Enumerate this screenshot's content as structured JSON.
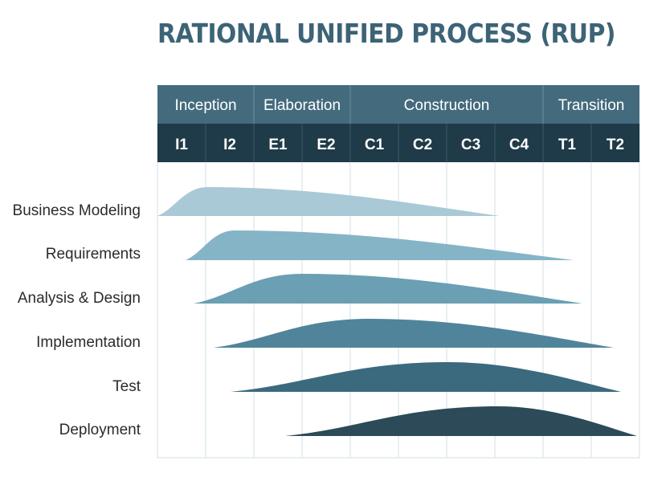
{
  "title": "RATIONAL UNIFIED PROCESS (RUP)",
  "phases": [
    {
      "label": "Inception",
      "span": 2
    },
    {
      "label": "Elaboration",
      "span": 2
    },
    {
      "label": "Construction",
      "span": 4
    },
    {
      "label": "Transition",
      "span": 2
    }
  ],
  "iterations": [
    "I1",
    "I2",
    "E1",
    "E2",
    "C1",
    "C2",
    "C3",
    "C4",
    "T1",
    "T2"
  ],
  "disciplines": [
    {
      "label": "Business Modeling",
      "color": "#a9c9d6"
    },
    {
      "label": "Requirements",
      "color": "#85b4c6"
    },
    {
      "label": "Analysis & Design",
      "color": "#6a9fb4"
    },
    {
      "label": "Implementation",
      "color": "#50849b"
    },
    {
      "label": "Test",
      "color": "#3b6a7e"
    },
    {
      "label": "Deployment",
      "color": "#2c4a58"
    }
  ],
  "colors": {
    "title": "#3d6376",
    "phase_header_bg": "#446b7d",
    "iteration_header_bg": "#1f3a48",
    "grid_line": "#d3dfe4"
  }
}
